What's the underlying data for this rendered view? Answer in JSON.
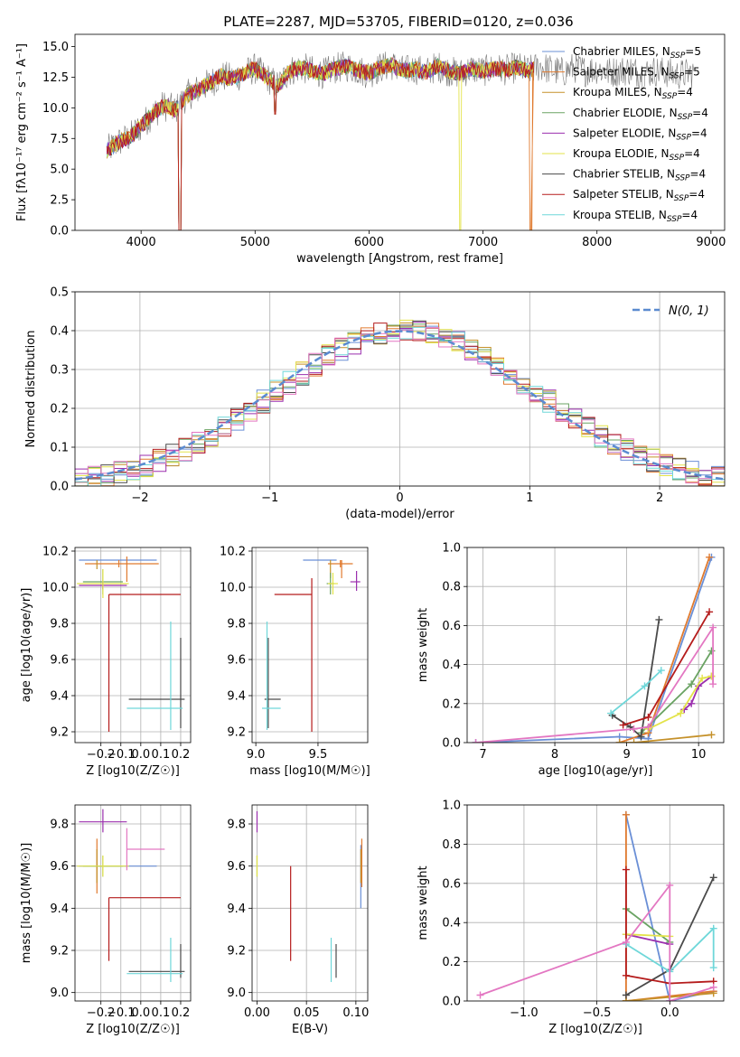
{
  "figure_title": "PLATE=2287, MJD=53705, FIBERID=0120, z=0.036",
  "colors": {
    "series": [
      "#6a8fd6",
      "#e07a2e",
      "#c5912a",
      "#6aa363",
      "#9b2fae",
      "#e3e34a",
      "#4a4a4a",
      "#b51c1c",
      "#6fd7d9"
    ],
    "gauss": "#5b8bd0",
    "grid": "#b0b0b0"
  },
  "chart_data": [
    {
      "name": "spectrum",
      "type": "line",
      "title": "PLATE=2287, MJD=53705, FIBERID=0120, z=0.036",
      "xlabel": "wavelength [Angstrom, rest frame]",
      "ylabel": "Flux [fλ10⁻¹⁷ erg cm⁻² s⁻¹ A⁻¹]",
      "xlim": [
        3420,
        9120
      ],
      "ylim": [
        0,
        16
      ],
      "xticks": [
        4000,
        5000,
        6000,
        7000,
        8000,
        9000
      ],
      "yticks": [
        0.0,
        2.5,
        5.0,
        7.5,
        10.0,
        12.5,
        15.0
      ],
      "grid": false,
      "legend_position": "top-right",
      "legend": [
        {
          "label": "Chabrier MILES, N",
          "sub": "SSP",
          "tail": "=5"
        },
        {
          "label": "Salpeter MILES, N",
          "sub": "SSP",
          "tail": "=5"
        },
        {
          "label": "Kroupa MILES, N",
          "sub": "SSP",
          "tail": "=4"
        },
        {
          "label": "Chabrier ELODIE, N",
          "sub": "SSP",
          "tail": "=4"
        },
        {
          "label": "Salpeter ELODIE, N",
          "sub": "SSP",
          "tail": "=4"
        },
        {
          "label": "Kroupa ELODIE, N",
          "sub": "SSP",
          "tail": "=4"
        },
        {
          "label": "Chabrier STELIB, N",
          "sub": "SSP",
          "tail": "=4"
        },
        {
          "label": "Salpeter STELIB, N",
          "sub": "SSP",
          "tail": "=4"
        },
        {
          "label": "Kroupa STELIB, N",
          "sub": "SSP",
          "tail": "=4"
        }
      ],
      "data_series": {
        "name": "observed",
        "x": [
          3700,
          3800,
          3900,
          4000,
          4100,
          4200,
          4300,
          4400,
          4500,
          4600,
          4700,
          4800,
          4900,
          5000,
          5100,
          5200,
          5300,
          5400,
          5500,
          5600,
          5700,
          5800,
          5900,
          6000,
          6100,
          6200,
          6300,
          6400,
          6500,
          6600,
          6700,
          6800,
          6900,
          7000,
          7100,
          7200,
          7300,
          7400,
          7500,
          7600,
          7700,
          7800,
          7900,
          8000,
          8100,
          8200,
          8300,
          8400,
          8500,
          8600,
          8700,
          8800
        ],
        "y": [
          6.5,
          7.2,
          7.6,
          8.5,
          9.5,
          10.2,
          9.8,
          11.0,
          11.5,
          12.0,
          12.6,
          12.4,
          12.8,
          13.2,
          12.5,
          11.8,
          13.0,
          13.3,
          13.0,
          12.8,
          13.2,
          13.4,
          13.1,
          12.8,
          13.3,
          13.5,
          13.0,
          13.2,
          12.9,
          13.4,
          13.0,
          12.8,
          13.2,
          13.0,
          13.2,
          13.1,
          13.3,
          13.0,
          13.4,
          13.1,
          12.9,
          13.3,
          13.0,
          13.2,
          12.9,
          13.0,
          13.1,
          12.8,
          13.0,
          12.9,
          12.7,
          12.8
        ]
      },
      "model_cutoffs": [
        {
          "series": "Kroupa ELODIE",
          "x": 6800
        },
        {
          "series": "Salpeter MILES",
          "x": 7420
        }
      ]
    },
    {
      "name": "residuals",
      "type": "step",
      "xlabel": "(data-model)/error",
      "ylabel": "Normed distribution",
      "xlim": [
        -2.5,
        2.5
      ],
      "ylim": [
        0,
        0.5
      ],
      "xticks": [
        -2,
        -1,
        0,
        1,
        2
      ],
      "yticks": [
        0.0,
        0.1,
        0.2,
        0.3,
        0.4,
        0.5
      ],
      "grid": true,
      "legend_position": "top-right",
      "legend": [
        {
          "label": "N(0, 1)"
        }
      ],
      "bin_edges_start": -2.5,
      "bin_width": 0.1
    },
    {
      "name": "age_vs_Z",
      "type": "errorbar",
      "xlabel": "Z [log10(Z/Z☉)]",
      "ylabel": "age  [log10(age/yr)]",
      "xlim": [
        -0.33,
        0.25
      ],
      "ylim": [
        9.14,
        10.22
      ],
      "xticks": [
        -0.2,
        -0.1,
        0.0,
        0.1,
        0.2
      ],
      "yticks": [
        9.2,
        9.4,
        9.6,
        9.8,
        10.0,
        10.2
      ],
      "grid": true,
      "points": [
        {
          "c": 0,
          "x": -0.09,
          "xerr": [
            0.22,
            0.17
          ],
          "y": 10.15,
          "yerr": [
            0.0,
            0.0
          ]
        },
        {
          "c": 1,
          "x": -0.11,
          "xerr": [
            0.17,
            0.2
          ],
          "y": 10.13,
          "yerr": [
            0.02,
            0.02
          ]
        },
        {
          "c": 2,
          "x": -0.22,
          "xerr": [
            0.0,
            0.0
          ],
          "y": 10.1,
          "yerr": [
            0.0,
            0.05
          ]
        },
        {
          "c": 3,
          "x": -0.19,
          "xerr": [
            0.1,
            0.1
          ],
          "y": 10.03,
          "yerr": [
            0.07,
            0.07
          ]
        },
        {
          "c": 4,
          "x": -0.19,
          "xerr": [
            0.12,
            0.12
          ],
          "y": 10.01,
          "yerr": [
            0.02,
            0.02
          ]
        },
        {
          "c": 5,
          "x": -0.19,
          "xerr": [
            0.13,
            0.13
          ],
          "y": 10.02,
          "yerr": [
            0.08,
            0.08
          ]
        },
        {
          "c": 6,
          "x": 0.2,
          "xerr": [
            0.26,
            0.02
          ],
          "y": 9.38,
          "yerr": [
            0.16,
            0.34
          ]
        },
        {
          "c": 7,
          "x": -0.16,
          "xerr": [
            0.0,
            0.36
          ],
          "y": 9.96,
          "yerr": [
            0.76,
            0.0
          ]
        },
        {
          "c": 8,
          "x": 0.15,
          "xerr": [
            0.22,
            0.06
          ],
          "y": 9.33,
          "yerr": [
            0.12,
            0.48
          ]
        },
        {
          "c": 1,
          "x": -0.07,
          "xerr": [
            0.0,
            0.0
          ],
          "y": 10.1,
          "yerr": [
            0.07,
            0.07
          ]
        }
      ]
    },
    {
      "name": "age_vs_mass",
      "type": "errorbar",
      "xlabel": "mass [log10(M/M☉)]",
      "ylabel": "",
      "xlim": [
        8.97,
        9.9
      ],
      "ylim": [
        9.14,
        10.22
      ],
      "xticks": [
        9.0,
        9.5
      ],
      "yticks": [
        9.2,
        9.4,
        9.6,
        9.8,
        10.0,
        10.2
      ],
      "grid": true,
      "points": [
        {
          "c": 0,
          "x": 9.6,
          "xerr": [
            0.22,
            0.05
          ],
          "y": 10.15,
          "yerr": [
            0.0,
            0.0
          ]
        },
        {
          "c": 1,
          "x": 9.68,
          "xerr": [
            0.1,
            0.1
          ],
          "y": 10.13,
          "yerr": [
            0.02,
            0.02
          ]
        },
        {
          "c": 2,
          "x": 9.6,
          "xerr": [
            0.0,
            0.0
          ],
          "y": 10.1,
          "yerr": [
            0.05,
            0.05
          ]
        },
        {
          "c": 3,
          "x": 9.6,
          "xerr": [
            0.03,
            0.03
          ],
          "y": 10.02,
          "yerr": [
            0.06,
            0.06
          ]
        },
        {
          "c": 4,
          "x": 9.81,
          "xerr": [
            0.05,
            0.03
          ],
          "y": 10.03,
          "yerr": [
            0.05,
            0.06
          ]
        },
        {
          "c": 5,
          "x": 9.62,
          "xerr": [
            0.04,
            0.04
          ],
          "y": 10.02,
          "yerr": [
            0.06,
            0.06
          ]
        },
        {
          "c": 6,
          "x": 9.1,
          "xerr": [
            0.03,
            0.1
          ],
          "y": 9.38,
          "yerr": [
            0.16,
            0.34
          ]
        },
        {
          "c": 7,
          "x": 9.45,
          "xerr": [
            0.3,
            0.0
          ],
          "y": 9.96,
          "yerr": [
            0.76,
            0.09
          ]
        },
        {
          "c": 8,
          "x": 9.09,
          "xerr": [
            0.04,
            0.11
          ],
          "y": 9.33,
          "yerr": [
            0.12,
            0.48
          ]
        },
        {
          "c": 1,
          "x": 9.69,
          "xerr": [
            0.0,
            0.0
          ],
          "y": 10.1,
          "yerr": [
            0.05,
            0.05
          ]
        }
      ]
    },
    {
      "name": "massweight_vs_age",
      "type": "line",
      "xlabel": "age  [log10(age/yr)]",
      "ylabel": "mass weight",
      "xlim": [
        6.78,
        10.35
      ],
      "ylim": [
        0,
        1.0
      ],
      "xticks": [
        7,
        8,
        9,
        10
      ],
      "yticks": [
        0.0,
        0.2,
        0.4,
        0.6,
        0.8,
        1.0
      ],
      "grid": true,
      "series": [
        {
          "c": 0,
          "x": [
            6.9,
            8.9,
            9.3,
            10.18
          ],
          "y": [
            0.0,
            0.03,
            0.02,
            0.95
          ]
        },
        {
          "c": 1,
          "x": [
            8.9,
            9.3,
            10.15
          ],
          "y": [
            0.0,
            0.05,
            0.95
          ]
        },
        {
          "c": 2,
          "x": [
            8.9,
            9.1,
            10.18
          ],
          "y": [
            0.0,
            0.0,
            0.04
          ]
        },
        {
          "c": 3,
          "x": [
            9.2,
            9.9,
            10.18
          ],
          "y": [
            0.05,
            0.3,
            0.47
          ]
        },
        {
          "c": 4,
          "x": [
            9.8,
            9.9,
            10.0,
            10.18
          ],
          "y": [
            0.17,
            0.2,
            0.29,
            0.34
          ]
        },
        {
          "c": 5,
          "x": [
            9.3,
            9.75,
            10.05,
            10.18
          ],
          "y": [
            0.07,
            0.15,
            0.33,
            0.34
          ]
        },
        {
          "c": 6,
          "x": [
            8.8,
            9.05,
            9.2,
            9.45
          ],
          "y": [
            0.14,
            0.08,
            0.03,
            0.63
          ]
        },
        {
          "c": 7,
          "x": [
            8.95,
            9.3,
            10.15
          ],
          "y": [
            0.09,
            0.13,
            0.67
          ]
        },
        {
          "c": 8,
          "x": [
            8.78,
            9.25,
            9.48
          ],
          "y": [
            0.15,
            0.29,
            0.37
          ]
        },
        {
          "c": "pink",
          "x": [
            6.9,
            9.1,
            9.3,
            10.2,
            10.2
          ],
          "y": [
            0.0,
            0.07,
            0.08,
            0.59,
            0.3
          ]
        }
      ]
    },
    {
      "name": "mass_vs_Z",
      "type": "errorbar",
      "xlabel": "Z [log10(Z/Z☉)]",
      "ylabel": "mass [log10(M/M☉)]",
      "xlim": [
        -0.33,
        0.25
      ],
      "ylim": [
        8.96,
        9.89
      ],
      "xticks": [
        -0.2,
        -0.1,
        0.0,
        0.1,
        0.2
      ],
      "yticks": [
        9.0,
        9.2,
        9.4,
        9.6,
        9.8
      ],
      "grid": true,
      "points": [
        {
          "c": 0,
          "x": -0.09,
          "xerr": [
            0.22,
            0.17
          ],
          "y": 9.6,
          "yerr": [
            0.0,
            0.0
          ]
        },
        {
          "c": 1,
          "x": -0.22,
          "xerr": [
            0.0,
            0.0
          ],
          "y": 9.6,
          "yerr": [
            0.13,
            0.13
          ]
        },
        {
          "c": 2,
          "x": -0.22,
          "xerr": [
            0.0,
            0.0
          ],
          "y": 9.6,
          "yerr": [
            0.08,
            0.08
          ]
        },
        {
          "c": 3,
          "x": -0.19,
          "xerr": [
            0.1,
            0.1
          ],
          "y": 9.6,
          "yerr": [
            0.05,
            0.05
          ]
        },
        {
          "c": 4,
          "x": -0.19,
          "xerr": [
            0.12,
            0.12
          ],
          "y": 9.81,
          "yerr": [
            0.05,
            0.06
          ]
        },
        {
          "c": 5,
          "x": -0.19,
          "xerr": [
            0.13,
            0.13
          ],
          "y": 9.6,
          "yerr": [
            0.05,
            0.05
          ]
        },
        {
          "c": 6,
          "x": 0.2,
          "xerr": [
            0.26,
            0.02
          ],
          "y": 9.1,
          "yerr": [
            0.03,
            0.13
          ]
        },
        {
          "c": 7,
          "x": -0.16,
          "xerr": [
            0.0,
            0.36
          ],
          "y": 9.45,
          "yerr": [
            0.3,
            0.0
          ]
        },
        {
          "c": 8,
          "x": 0.15,
          "xerr": [
            0.22,
            0.06
          ],
          "y": 9.09,
          "yerr": [
            0.04,
            0.17
          ]
        },
        {
          "c": "pink",
          "x": -0.07,
          "xerr": [
            0.0,
            0.19
          ],
          "y": 9.68,
          "yerr": [
            0.1,
            0.1
          ]
        }
      ]
    },
    {
      "name": "mass_vs_EBV",
      "type": "errorbar",
      "xlabel": "E(B-V)",
      "ylabel": "",
      "xlim": [
        -0.005,
        0.112
      ],
      "ylim": [
        8.96,
        9.89
      ],
      "xticks": [
        0.0,
        0.05,
        0.1
      ],
      "yticks": [
        9.0,
        9.2,
        9.4,
        9.6,
        9.8
      ],
      "grid": true,
      "points": [
        {
          "c": 0,
          "x": 0.105,
          "xerr": [
            0,
            0
          ],
          "y": 9.6,
          "yerr": [
            0.2,
            0.1
          ]
        },
        {
          "c": 1,
          "x": 0.106,
          "xerr": [
            0,
            0
          ],
          "y": 9.6,
          "yerr": [
            0.1,
            0.13
          ]
        },
        {
          "c": 2,
          "x": 0.105,
          "xerr": [
            0,
            0
          ],
          "y": 9.6,
          "yerr": [
            0.08,
            0.08
          ]
        },
        {
          "c": 3,
          "x": 0.0,
          "xerr": [
            0,
            0
          ],
          "y": 9.6,
          "yerr": [
            0.05,
            0.05
          ]
        },
        {
          "c": 4,
          "x": 0.0,
          "xerr": [
            0,
            0
          ],
          "y": 9.81,
          "yerr": [
            0.05,
            0.05
          ]
        },
        {
          "c": 5,
          "x": 0.0,
          "xerr": [
            0,
            0
          ],
          "y": 9.6,
          "yerr": [
            0.05,
            0.05
          ]
        },
        {
          "c": 6,
          "x": 0.08,
          "xerr": [
            0,
            0
          ],
          "y": 9.1,
          "yerr": [
            0.03,
            0.13
          ]
        },
        {
          "c": 7,
          "x": 0.034,
          "xerr": [
            0,
            0
          ],
          "y": 9.45,
          "yerr": [
            0.3,
            0.15
          ]
        },
        {
          "c": 8,
          "x": 0.075,
          "xerr": [
            0,
            0
          ],
          "y": 9.09,
          "yerr": [
            0.04,
            0.17
          ]
        }
      ]
    },
    {
      "name": "massweight_vs_Z",
      "type": "line",
      "xlabel": "Z [log10(Z/Z☉)]",
      "ylabel": "mass weight",
      "xlim": [
        -1.39,
        0.37
      ],
      "ylim": [
        0,
        1.0
      ],
      "xticks": [
        -1.0,
        -0.5,
        0.0
      ],
      "yticks": [
        0.0,
        0.2,
        0.4,
        0.6,
        0.8,
        1.0
      ],
      "grid": true,
      "series": [
        {
          "c": 0,
          "x": [
            -0.3,
            0.0,
            0.3
          ],
          "y": [
            0.95,
            0.0,
            0.05
          ]
        },
        {
          "c": 1,
          "x": [
            -0.3,
            -0.3,
            0.3
          ],
          "y": [
            0.95,
            0.0,
            0.05
          ]
        },
        {
          "c": 2,
          "x": [
            -0.3,
            -0.3,
            0.3
          ],
          "y": [
            0.0,
            0.0,
            0.04
          ]
        },
        {
          "c": 3,
          "x": [
            -0.3,
            0.0
          ],
          "y": [
            0.47,
            0.3
          ]
        },
        {
          "c": 4,
          "x": [
            -0.3,
            0.0
          ],
          "y": [
            0.34,
            0.29
          ]
        },
        {
          "c": 5,
          "x": [
            -0.3,
            0.0
          ],
          "y": [
            0.34,
            0.33
          ]
        },
        {
          "c": 6,
          "x": [
            -0.3,
            0.0,
            0.3
          ],
          "y": [
            0.03,
            0.16,
            0.63
          ]
        },
        {
          "c": 7,
          "x": [
            -0.3,
            -0.3,
            0.0,
            0.3
          ],
          "y": [
            0.67,
            0.13,
            0.09,
            0.1
          ]
        },
        {
          "c": 8,
          "x": [
            -0.3,
            0.0,
            0.3,
            0.3
          ],
          "y": [
            0.29,
            0.15,
            0.37,
            0.17
          ]
        },
        {
          "c": "pink",
          "x": [
            -1.3,
            -0.3,
            0.0,
            0.0,
            0.3
          ],
          "y": [
            0.03,
            0.3,
            0.59,
            0.0,
            0.07
          ]
        }
      ]
    }
  ]
}
